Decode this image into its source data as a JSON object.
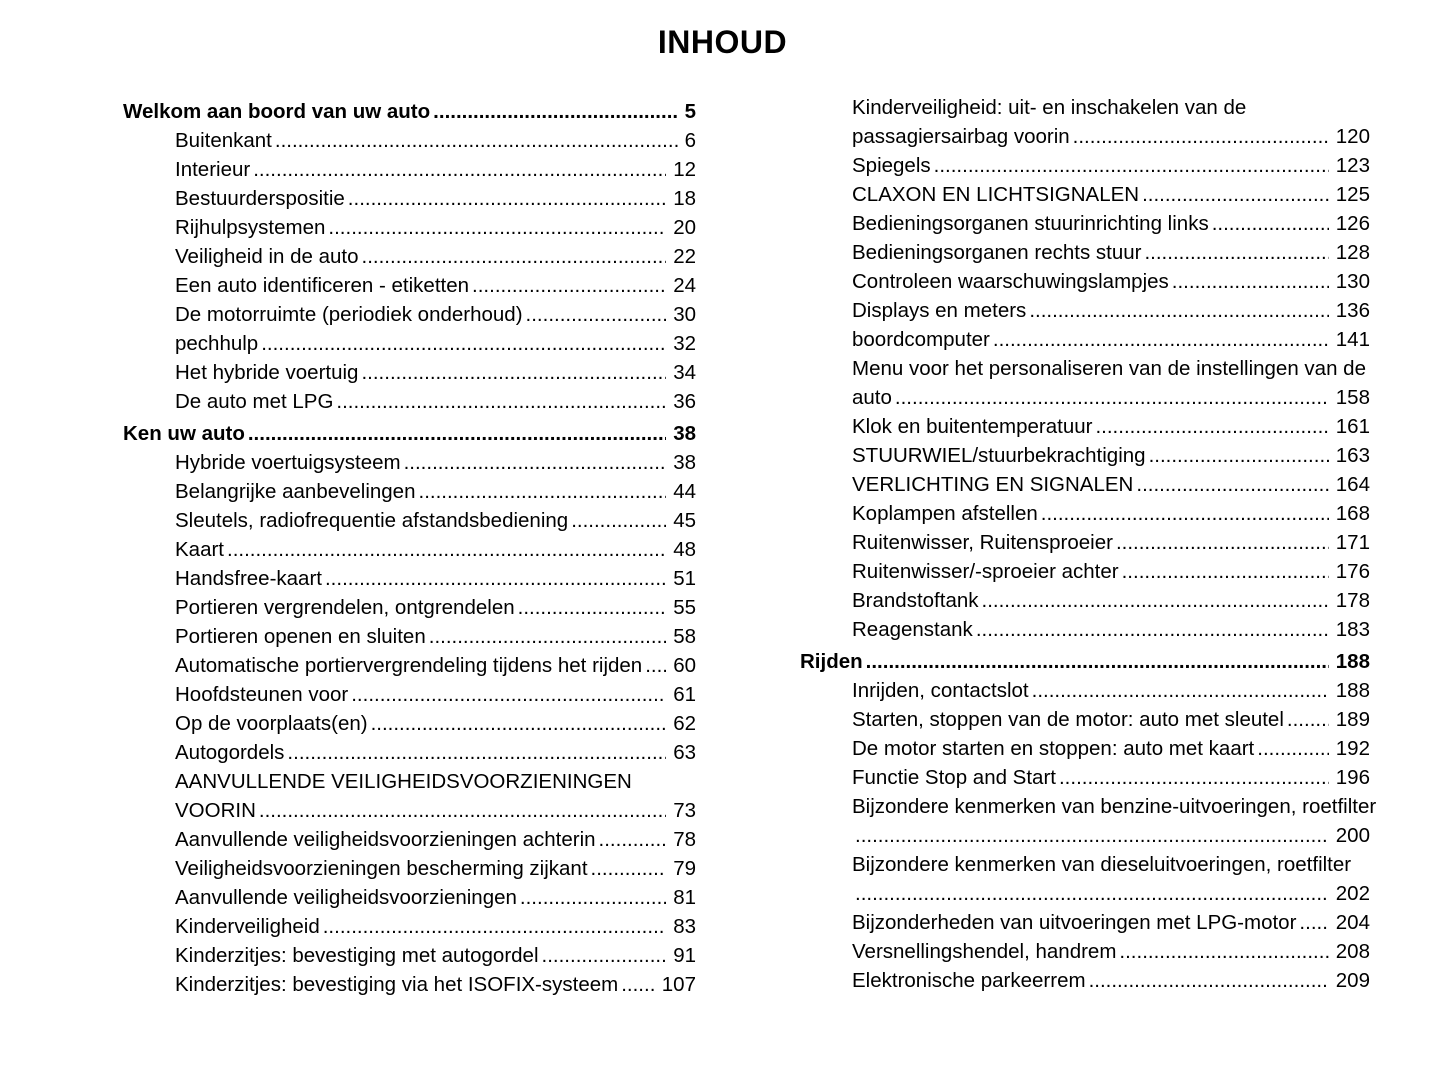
{
  "document": {
    "title": "INHOUD",
    "columns": {
      "left": [
        {
          "label": "Welkom aan boord van uw auto",
          "page": "5",
          "kind": "chapter",
          "leader": true
        },
        {
          "label": "Buitenkant",
          "page": "6",
          "kind": "item",
          "leader": true
        },
        {
          "label": "Interieur",
          "page": "12",
          "kind": "item",
          "leader": true
        },
        {
          "label": "Bestuurderspositie",
          "page": "18",
          "kind": "item",
          "leader": true
        },
        {
          "label": "Rijhulpsystemen",
          "page": "20",
          "kind": "item",
          "leader": true
        },
        {
          "label": "Veiligheid in de auto",
          "page": "22",
          "kind": "item",
          "leader": true
        },
        {
          "label": "Een auto identificeren - etiketten",
          "page": "24",
          "kind": "item",
          "leader": true
        },
        {
          "label": "De motorruimte (periodiek onderhoud)",
          "page": "30",
          "kind": "item",
          "leader": true
        },
        {
          "label": "pechhulp",
          "page": "32",
          "kind": "item",
          "leader": true
        },
        {
          "label": "Het hybride voertuig",
          "page": "34",
          "kind": "item",
          "leader": true
        },
        {
          "label": "De auto met LPG",
          "page": "36",
          "kind": "item",
          "leader": true
        },
        {
          "label": "Ken uw auto",
          "page": "38",
          "kind": "chapter",
          "leader": true
        },
        {
          "label": "Hybride voertuigsysteem",
          "page": "38",
          "kind": "item",
          "leader": true
        },
        {
          "label": "Belangrijke aanbevelingen",
          "page": "44",
          "kind": "item",
          "leader": true
        },
        {
          "label": "Sleutels, radiofrequentie afstandsbediening",
          "page": "45",
          "kind": "item",
          "leader": true
        },
        {
          "label": "Kaart",
          "page": "48",
          "kind": "item",
          "leader": true
        },
        {
          "label": "Handsfree-kaart",
          "page": "51",
          "kind": "item",
          "leader": true
        },
        {
          "label": "Portieren vergrendelen, ontgrendelen",
          "page": "55",
          "kind": "item",
          "leader": true
        },
        {
          "label": "Portieren openen en sluiten",
          "page": "58",
          "kind": "item",
          "leader": true
        },
        {
          "label": "Automatische portiervergrendeling tijdens het rijden",
          "page": "60",
          "kind": "item",
          "leader": true
        },
        {
          "label": "Hoofdsteunen voor",
          "page": "61",
          "kind": "item",
          "leader": true
        },
        {
          "label": "Op de voorplaats(en)",
          "page": "62",
          "kind": "item",
          "leader": true
        },
        {
          "label": "Autogordels",
          "page": "63",
          "kind": "item",
          "leader": true
        },
        {
          "label": "AANVULLENDE VEILIGHEIDSVOORZIENINGEN",
          "page": "",
          "kind": "item",
          "leader": false
        },
        {
          "label": "VOORIN",
          "page": "73",
          "kind": "item",
          "leader": true
        },
        {
          "label": "Aanvullende veiligheidsvoorzieningen achterin",
          "page": "78",
          "kind": "item",
          "leader": true
        },
        {
          "label": "Veiligheidsvoorzieningen bescherming zijkant",
          "page": "79",
          "kind": "item",
          "leader": true
        },
        {
          "label": "Aanvullende veiligheidsvoorzieningen",
          "page": "81",
          "kind": "item",
          "leader": true
        },
        {
          "label": "Kinderveiligheid",
          "page": "83",
          "kind": "item",
          "leader": true
        },
        {
          "label": "Kinderzitjes: bevestiging met autogordel",
          "page": "91",
          "kind": "item",
          "leader": true
        },
        {
          "label": "Kinderzitjes: bevestiging via het ISOFIX-systeem",
          "page": "107",
          "kind": "item",
          "leader": true
        }
      ],
      "right": [
        {
          "label": "Kinderveiligheid: uit- en inschakelen van de",
          "page": "",
          "kind": "item",
          "leader": false
        },
        {
          "label": "passagiersairbag voorin",
          "page": "120",
          "kind": "item",
          "leader": true
        },
        {
          "label": "Spiegels",
          "page": "123",
          "kind": "item",
          "leader": true
        },
        {
          "label": "CLAXON EN LICHTSIGNALEN",
          "page": "125",
          "kind": "item",
          "leader": true
        },
        {
          "label": "Bedieningsorganen stuurinrichting links",
          "page": "126",
          "kind": "item",
          "leader": true
        },
        {
          "label": "Bedieningsorganen rechts stuur",
          "page": "128",
          "kind": "item",
          "leader": true
        },
        {
          "label": "Controleen waarschuwingslampjes",
          "page": "130",
          "kind": "item",
          "leader": true
        },
        {
          "label": "Displays en meters",
          "page": "136",
          "kind": "item",
          "leader": true
        },
        {
          "label": "boordcomputer",
          "page": "141",
          "kind": "item",
          "leader": true
        },
        {
          "label": "Menu voor het personaliseren van de instellingen van de",
          "page": "",
          "kind": "item",
          "leader": false
        },
        {
          "label": "auto",
          "page": "158",
          "kind": "item",
          "leader": true
        },
        {
          "label": "Klok en buitentemperatuur",
          "page": "161",
          "kind": "item",
          "leader": true
        },
        {
          "label": "STUURWIEL/stuurbekrachtiging",
          "page": "163",
          "kind": "item",
          "leader": true
        },
        {
          "label": "VERLICHTING EN SIGNALEN",
          "page": "164",
          "kind": "item",
          "leader": true
        },
        {
          "label": "Koplampen afstellen",
          "page": "168",
          "kind": "item",
          "leader": true
        },
        {
          "label": "Ruitenwisser, Ruitensproeier",
          "page": "171",
          "kind": "item",
          "leader": true
        },
        {
          "label": "Ruitenwisser/-sproeier achter",
          "page": "176",
          "kind": "item",
          "leader": true
        },
        {
          "label": "Brandstoftank",
          "page": "178",
          "kind": "item",
          "leader": true
        },
        {
          "label": "Reagenstank",
          "page": "183",
          "kind": "item",
          "leader": true
        },
        {
          "label": "Rijden",
          "page": "188",
          "kind": "chapter",
          "leader": true
        },
        {
          "label": "Inrijden, contactslot",
          "page": "188",
          "kind": "item",
          "leader": true
        },
        {
          "label": "Starten, stoppen van de motor: auto met sleutel",
          "page": "189",
          "kind": "item",
          "leader": true
        },
        {
          "label": "De motor starten en stoppen: auto met kaart",
          "page": "192",
          "kind": "item",
          "leader": true
        },
        {
          "label": "Functie Stop and Start",
          "page": "196",
          "kind": "item",
          "leader": true
        },
        {
          "label": "Bijzondere kenmerken van benzine-uitvoeringen, roetfilter",
          "page": "",
          "kind": "item",
          "leader": false
        },
        {
          "label": "",
          "page": "200",
          "kind": "item",
          "leader": true
        },
        {
          "label": "Bijzondere kenmerken van dieseluitvoeringen, roetfilter",
          "page": "",
          "kind": "item",
          "leader": false
        },
        {
          "label": "",
          "page": "202",
          "kind": "item",
          "leader": true
        },
        {
          "label": "Bijzonderheden van uitvoeringen met LPG-motor",
          "page": "204",
          "kind": "item",
          "leader": true
        },
        {
          "label": "Versnellingshendel, handrem",
          "page": "208",
          "kind": "item",
          "leader": true
        },
        {
          "label": "Elektronische parkeerrem",
          "page": "209",
          "kind": "item",
          "leader": true
        }
      ]
    }
  }
}
